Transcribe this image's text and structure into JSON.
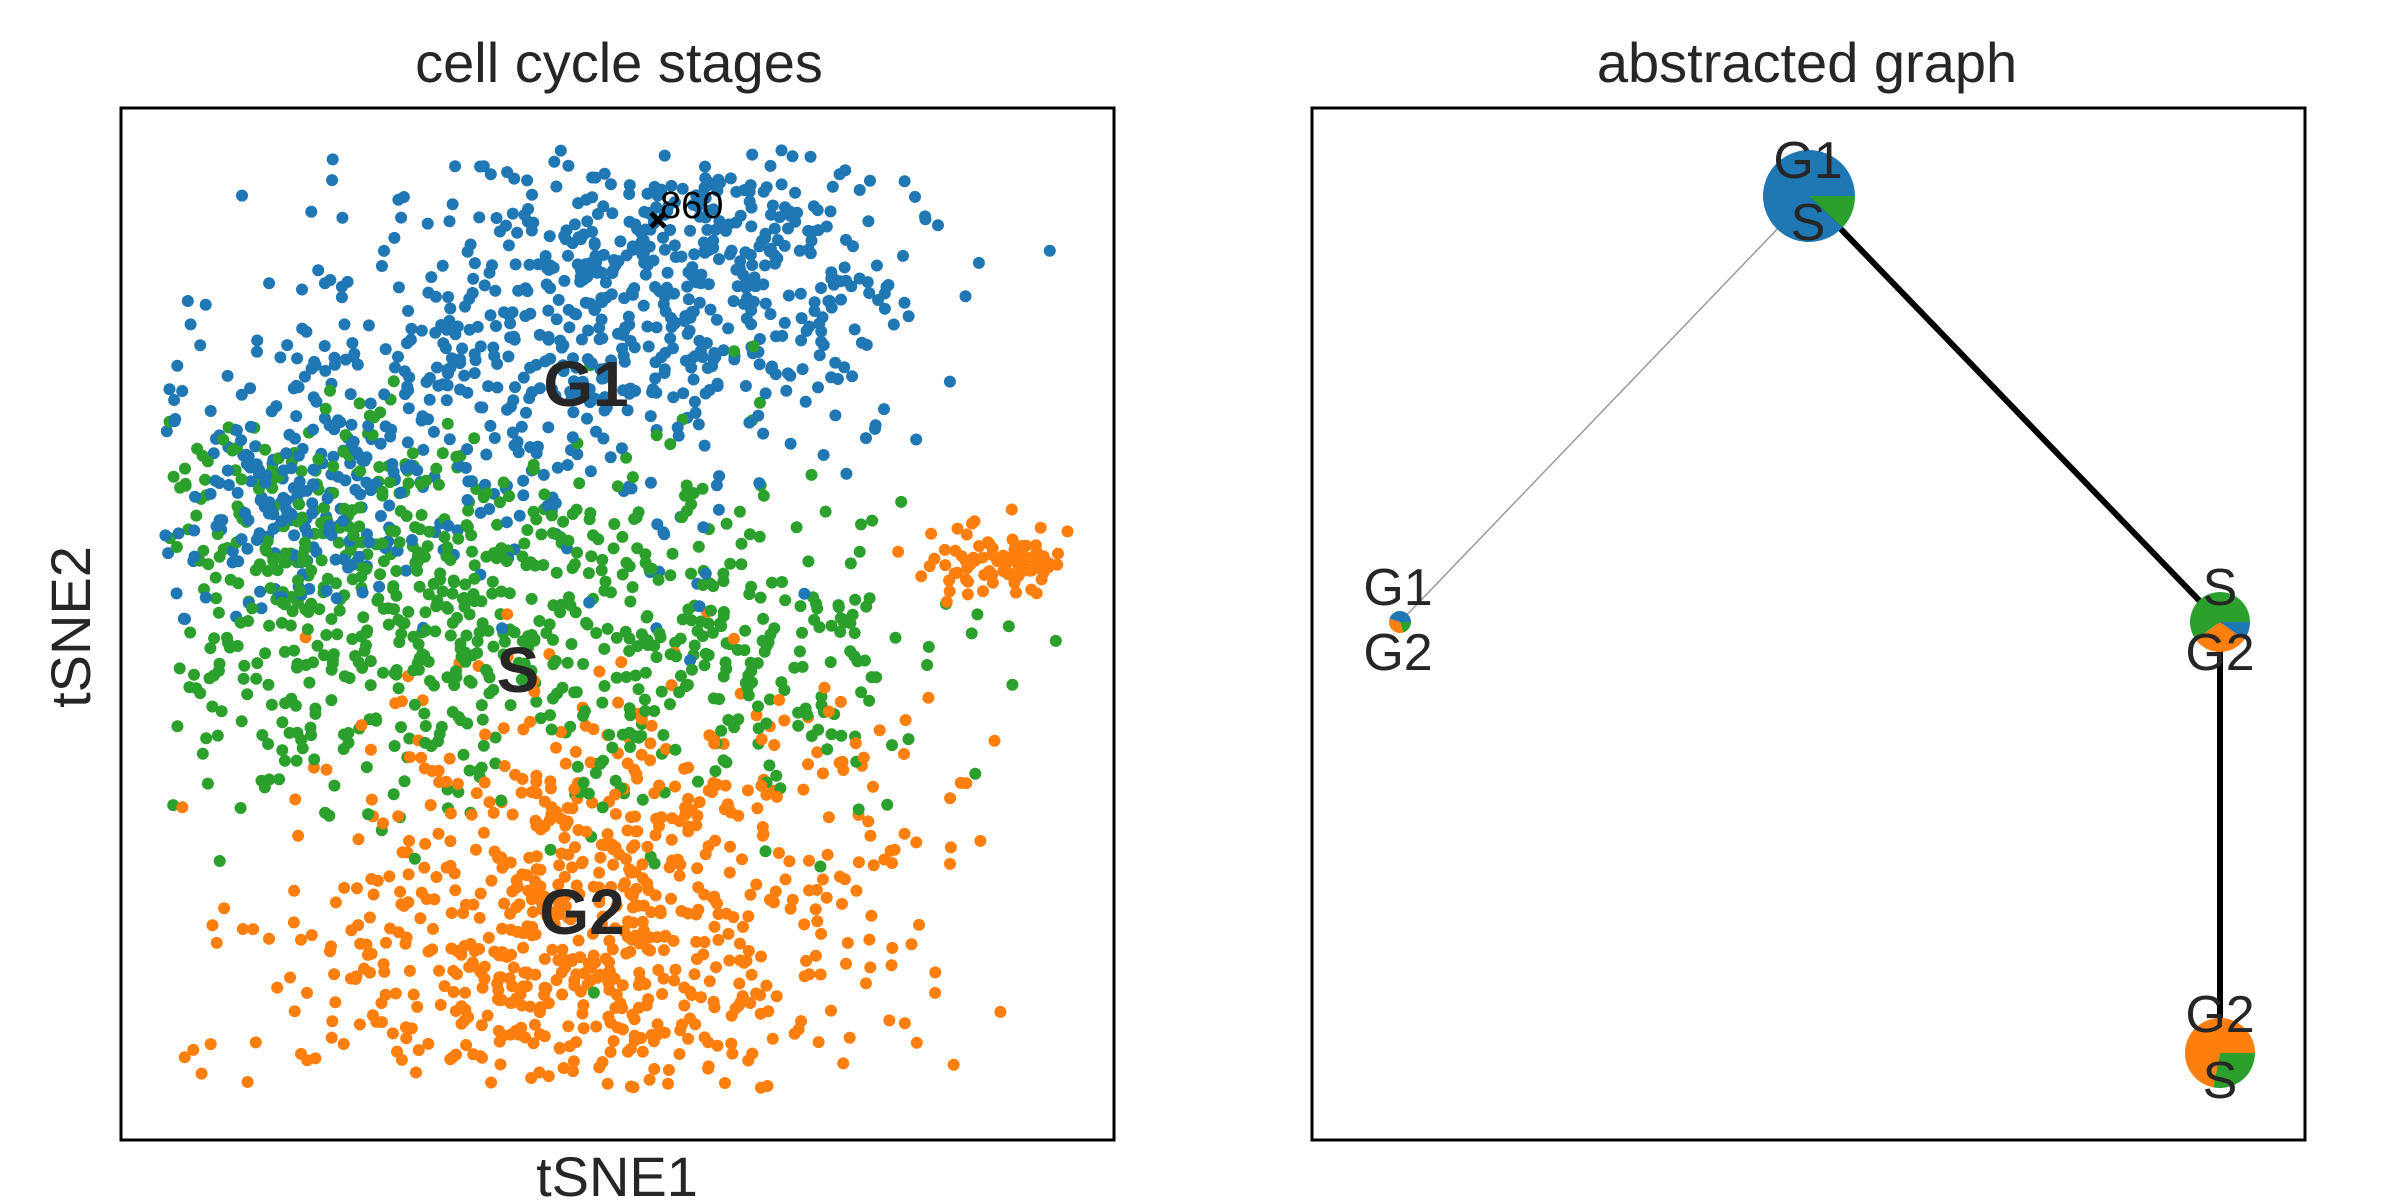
{
  "colors": {
    "G1": "#1f77b4",
    "G2": "#ff7f0e",
    "S": "#2ca02c",
    "axis": "#000000",
    "text": "#262626",
    "edge": "#000000",
    "thin_edge": "#9a9a9a"
  },
  "chart_data": [
    {
      "type": "scatter",
      "title": "cell cycle stages",
      "xlabel": "tSNE1",
      "ylabel": "tSNE2",
      "grid": false,
      "ticks": false,
      "series": [
        {
          "name": "G1",
          "color": "#1f77b4",
          "approx_points": 1000
        },
        {
          "name": "S",
          "color": "#2ca02c",
          "approx_points": 900
        },
        {
          "name": "G2",
          "color": "#ff7f0e",
          "approx_points": 900
        }
      ],
      "cluster_labels": [
        "G1",
        "S",
        "G2"
      ],
      "annotation": {
        "marker": "cross-icon",
        "text": "860"
      }
    },
    {
      "type": "graph",
      "title": "abstracted graph",
      "nodes": [
        {
          "id": "n0",
          "labels": [
            "G1",
            "S"
          ],
          "composition": {
            "G1": 0.88,
            "S": 0.12
          }
        },
        {
          "id": "n1",
          "labels": [
            "G1",
            "G2"
          ],
          "composition": {
            "G1": 0.45,
            "G2": 0.35,
            "S": 0.2
          }
        },
        {
          "id": "n2",
          "labels": [
            "S",
            "G2"
          ],
          "composition": {
            "S": 0.6,
            "G2": 0.3,
            "G1": 0.1
          }
        },
        {
          "id": "n3",
          "labels": [
            "G2",
            "S"
          ],
          "composition": {
            "G2": 0.72,
            "S": 0.28
          }
        }
      ],
      "edges": [
        {
          "from": "n0",
          "to": "n1",
          "weight": "weak"
        },
        {
          "from": "n0",
          "to": "n2",
          "weight": "strong"
        },
        {
          "from": "n2",
          "to": "n3",
          "weight": "strong"
        }
      ]
    }
  ]
}
